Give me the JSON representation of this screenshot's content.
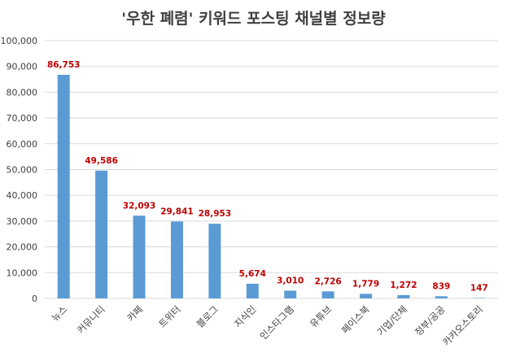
{
  "chart_data": {
    "type": "bar",
    "title": "'우한 폐렴' 키워드 포스팅 채널별 정보량",
    "xlabel": "",
    "ylabel": "",
    "ylim": [
      0,
      100000
    ],
    "yticks": [
      "0",
      "10,000",
      "20,000",
      "30,000",
      "40,000",
      "50,000",
      "60,000",
      "70,000",
      "80,000",
      "90,000",
      "100,000"
    ],
    "grid": true,
    "legend": "none",
    "categories": [
      "뉴스",
      "커뮤니티",
      "카페",
      "트위터",
      "블로그",
      "지식인",
      "인스타그램",
      "유튜브",
      "페이스북",
      "기업/단체",
      "정부/공공",
      "카카오스토리"
    ],
    "values": [
      86753,
      49586,
      32093,
      29841,
      28953,
      5674,
      3010,
      2726,
      1779,
      1272,
      839,
      147
    ],
    "data_labels": [
      "86,753",
      "49,586",
      "32,093",
      "29,841",
      "28,953",
      "5,674",
      "3,010",
      "2,726",
      "1,779",
      "1,272",
      "839",
      "147"
    ],
    "colors": {
      "bar": "#5B9BD5",
      "label": "#C00000",
      "grid": "#D9D9D9"
    }
  }
}
